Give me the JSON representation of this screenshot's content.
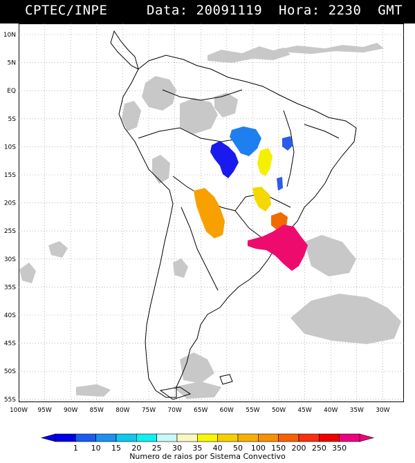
{
  "header": {
    "left": "CPTEC/INPE",
    "right": "Data: 20091119  Hora: 2230  GMT"
  },
  "map": {
    "lat_labels": [
      "10N",
      "5N",
      "EQ",
      "5S",
      "10S",
      "15S",
      "20S",
      "25S",
      "30S",
      "35S",
      "40S",
      "45S",
      "50S",
      "55S"
    ],
    "lon_labels": [
      "100W",
      "95W",
      "90W",
      "85W",
      "80W",
      "75W",
      "70W",
      "65W",
      "60W",
      "55W",
      "50W",
      "45W",
      "40W",
      "35W",
      "30W"
    ],
    "land_outline_color": "#000000",
    "cloud_color": "#c8c8c8",
    "systems": [
      {
        "name": "system-blue-1",
        "color": "#1a1aee",
        "class": "1"
      },
      {
        "name": "system-blue-2",
        "color": "#1e7ff0",
        "class": "10"
      },
      {
        "name": "system-yellow-1",
        "color": "#f5ef00",
        "class": "40"
      },
      {
        "name": "system-yellow-2",
        "color": "#f5d800",
        "class": "50"
      },
      {
        "name": "system-orange-1",
        "color": "#f7a000",
        "class": "100"
      },
      {
        "name": "system-orange-2",
        "color": "#f06a00",
        "class": "200"
      },
      {
        "name": "system-pink",
        "color": "#ee0b6e",
        "class": "350"
      },
      {
        "name": "system-blue-3",
        "color": "#2a5ce8",
        "class": "15"
      }
    ]
  },
  "legend": {
    "labels": [
      "1",
      "10",
      "15",
      "20",
      "25",
      "30",
      "35",
      "40",
      "50",
      "100",
      "150",
      "200",
      "250",
      "350"
    ],
    "colors": [
      "#0000e8",
      "#1a5cf0",
      "#1e90f0",
      "#10c8f0",
      "#10f0f0",
      "#c8f8f8",
      "#f8f8c0",
      "#f8f800",
      "#f8d000",
      "#f8b000",
      "#f89000",
      "#f86000",
      "#f83010",
      "#f00000",
      "#f00080"
    ],
    "caption": "Numero de raios por Sistema Convectivo"
  }
}
